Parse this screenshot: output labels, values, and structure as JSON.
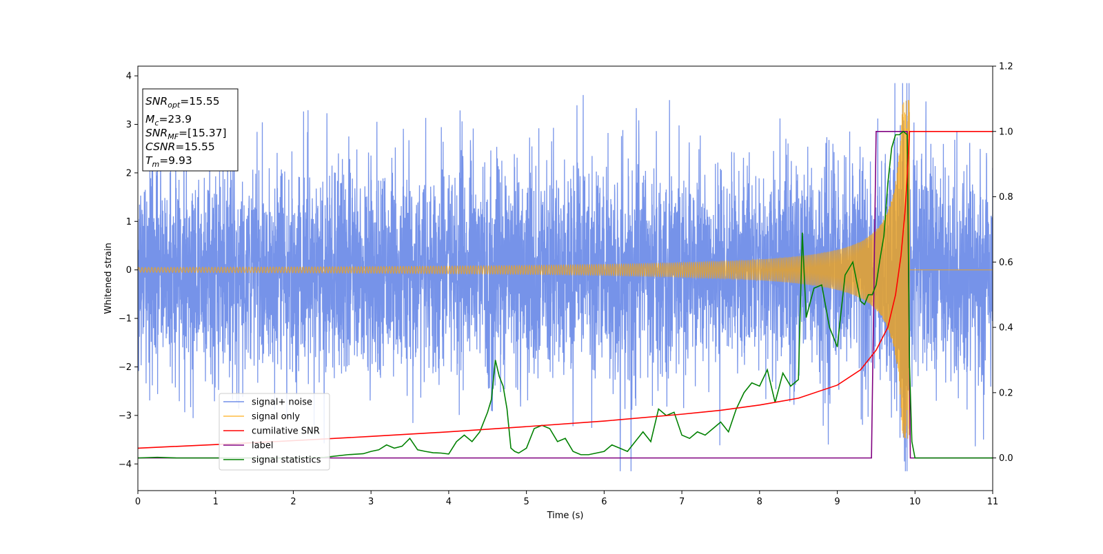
{
  "chart_data": {
    "type": "line",
    "title": "",
    "xlabel": "Time (s)",
    "ylabel": "Whitened strain",
    "xlim": [
      0,
      11
    ],
    "ylim": [
      -4.55,
      4.2
    ],
    "y2lim": [
      -0.1,
      1.2
    ],
    "grid": false,
    "legend_position": "lower-left",
    "xticks": [
      "0",
      "1",
      "2",
      "3",
      "4",
      "5",
      "6",
      "7",
      "8",
      "9",
      "10",
      "11"
    ],
    "yticks": [
      "4",
      "3",
      "2",
      "1",
      "0",
      "−1",
      "−2",
      "−3",
      "−4"
    ],
    "y2ticks": [
      "1.2",
      "1.0",
      "0.8",
      "0.6",
      "0.4",
      "0.2",
      "0.0"
    ],
    "annotation": {
      "snr_opt": {
        "base": "SNR",
        "sub": "opt",
        "value": "=15.55"
      },
      "mc": {
        "base": "M",
        "sub": "c",
        "value": "=23.9"
      },
      "snr_mf": {
        "base": "SNR",
        "sub": "MF",
        "value": "=[15.37]"
      },
      "csnr": {
        "base": "CSNR",
        "sub": "",
        "value": "=15.55"
      },
      "tm": {
        "base": "T",
        "sub": "m",
        "value": "=9.93"
      }
    },
    "series": [
      {
        "name": "signal+ noise",
        "color": "#4169e1",
        "axis": "left",
        "description": "whitened noise with std ~1.1, extremes near ±4; injected chirp rises to ~3.5 at t≈9.9",
        "noise_std": 1.1,
        "x_range": [
          0,
          11
        ]
      },
      {
        "name": "signal only",
        "color": "#ffa500",
        "axis": "left",
        "description": "chirp with amplitude ~0.05 growing to ~3.5, merger at t=9.93, zero afterwards",
        "merger_time": 9.93,
        "peak_amplitude": 3.5
      },
      {
        "name": "cumilative SNR",
        "color": "#ff0000",
        "axis": "right",
        "x": [
          0,
          1,
          2,
          3,
          4,
          5,
          6,
          7,
          7.5,
          8,
          8.5,
          9,
          9.3,
          9.5,
          9.65,
          9.75,
          9.82,
          9.87,
          9.9,
          9.93,
          11
        ],
        "y": [
          0.03,
          0.041,
          0.053,
          0.066,
          0.08,
          0.096,
          0.113,
          0.134,
          0.146,
          0.162,
          0.183,
          0.223,
          0.27,
          0.33,
          0.4,
          0.5,
          0.62,
          0.75,
          0.86,
          1.0,
          1.0
        ]
      },
      {
        "name": "label",
        "color": "#800080",
        "axis": "right",
        "x": [
          0,
          9.44,
          9.5,
          9.9,
          9.94,
          11
        ],
        "y": [
          0,
          0,
          1,
          1,
          0,
          0
        ]
      },
      {
        "name": "signal statistics",
        "color": "#008000",
        "axis": "right",
        "x": [
          0,
          0.25,
          0.5,
          1,
          1.5,
          2,
          2.4,
          2.7,
          2.9,
          3.0,
          3.1,
          3.2,
          3.3,
          3.4,
          3.5,
          3.6,
          3.7,
          3.8,
          3.9,
          4.0,
          4.1,
          4.2,
          4.3,
          4.4,
          4.5,
          4.55,
          4.6,
          4.65,
          4.7,
          4.75,
          4.8,
          4.85,
          4.9,
          5.0,
          5.1,
          5.2,
          5.3,
          5.4,
          5.5,
          5.6,
          5.7,
          5.8,
          5.9,
          6.0,
          6.1,
          6.2,
          6.3,
          6.4,
          6.5,
          6.6,
          6.7,
          6.8,
          6.9,
          7.0,
          7.1,
          7.2,
          7.3,
          7.4,
          7.5,
          7.6,
          7.7,
          7.8,
          7.9,
          8.0,
          8.1,
          8.2,
          8.3,
          8.4,
          8.5,
          8.55,
          8.6,
          8.7,
          8.8,
          8.9,
          9.0,
          9.1,
          9.2,
          9.3,
          9.35,
          9.4,
          9.45,
          9.5,
          9.55,
          9.6,
          9.65,
          9.7,
          9.75,
          9.8,
          9.85,
          9.9,
          9.93,
          9.96,
          10.0,
          11
        ],
        "y": [
          0.0,
          0.002,
          0.0,
          0.0,
          0.0,
          0.0,
          0.002,
          0.01,
          0.013,
          0.02,
          0.025,
          0.04,
          0.03,
          0.036,
          0.06,
          0.025,
          0.02,
          0.016,
          0.015,
          0.012,
          0.05,
          0.07,
          0.05,
          0.08,
          0.14,
          0.18,
          0.3,
          0.25,
          0.22,
          0.15,
          0.03,
          0.02,
          0.015,
          0.03,
          0.09,
          0.1,
          0.09,
          0.05,
          0.06,
          0.02,
          0.01,
          0.01,
          0.015,
          0.02,
          0.04,
          0.03,
          0.02,
          0.05,
          0.08,
          0.05,
          0.15,
          0.13,
          0.14,
          0.07,
          0.06,
          0.08,
          0.07,
          0.09,
          0.11,
          0.08,
          0.15,
          0.2,
          0.23,
          0.22,
          0.27,
          0.17,
          0.26,
          0.22,
          0.24,
          0.69,
          0.43,
          0.52,
          0.53,
          0.4,
          0.34,
          0.56,
          0.6,
          0.48,
          0.47,
          0.5,
          0.5,
          0.53,
          0.61,
          0.68,
          0.84,
          0.95,
          0.99,
          0.99,
          1.0,
          0.99,
          0.28,
          0.05,
          0.0,
          0.0
        ]
      }
    ]
  }
}
